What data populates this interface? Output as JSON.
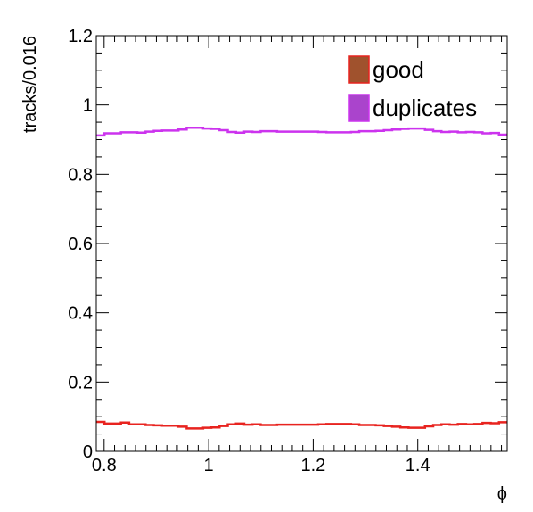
{
  "chart_data": {
    "type": "line",
    "style": "step-histogram",
    "xlabel": "ϕ",
    "ylabel": "tracks/0.016",
    "xlim": [
      0.785,
      1.571
    ],
    "ylim": [
      0,
      1.2
    ],
    "x_ticks": [
      0.8,
      1,
      1.2,
      1.4
    ],
    "x_tick_labels": [
      "0.8",
      "1",
      "1.2",
      "1.4"
    ],
    "y_ticks": [
      0,
      0.2,
      0.4,
      0.6,
      0.8,
      1,
      1.2
    ],
    "y_tick_labels": [
      "0",
      "0.2",
      "0.4",
      "0.6",
      "0.8",
      "1",
      "1.2"
    ],
    "grid": false,
    "legend_position": "top-right",
    "bin_width": 0.016,
    "series": [
      {
        "name": "good",
        "color": "#e8231f",
        "legend_fill": "#a0522d",
        "values": [
          0.085,
          0.08,
          0.08,
          0.083,
          0.078,
          0.078,
          0.076,
          0.075,
          0.074,
          0.074,
          0.071,
          0.066,
          0.066,
          0.068,
          0.069,
          0.073,
          0.078,
          0.08,
          0.077,
          0.078,
          0.076,
          0.076,
          0.077,
          0.077,
          0.077,
          0.077,
          0.077,
          0.078,
          0.079,
          0.079,
          0.079,
          0.078,
          0.076,
          0.076,
          0.075,
          0.073,
          0.071,
          0.069,
          0.068,
          0.068,
          0.072,
          0.076,
          0.078,
          0.077,
          0.079,
          0.078,
          0.079,
          0.082,
          0.081,
          0.084
        ]
      },
      {
        "name": "duplicates",
        "color": "#cc33ee",
        "legend_fill": "#aa44cc",
        "values": [
          0.912,
          0.918,
          0.918,
          0.921,
          0.921,
          0.92,
          0.923,
          0.925,
          0.926,
          0.926,
          0.929,
          0.934,
          0.934,
          0.932,
          0.931,
          0.927,
          0.922,
          0.92,
          0.923,
          0.922,
          0.924,
          0.924,
          0.923,
          0.923,
          0.923,
          0.923,
          0.923,
          0.922,
          0.921,
          0.921,
          0.921,
          0.922,
          0.924,
          0.924,
          0.925,
          0.927,
          0.929,
          0.931,
          0.932,
          0.932,
          0.928,
          0.924,
          0.922,
          0.923,
          0.921,
          0.922,
          0.921,
          0.918,
          0.919,
          0.914
        ]
      }
    ]
  }
}
